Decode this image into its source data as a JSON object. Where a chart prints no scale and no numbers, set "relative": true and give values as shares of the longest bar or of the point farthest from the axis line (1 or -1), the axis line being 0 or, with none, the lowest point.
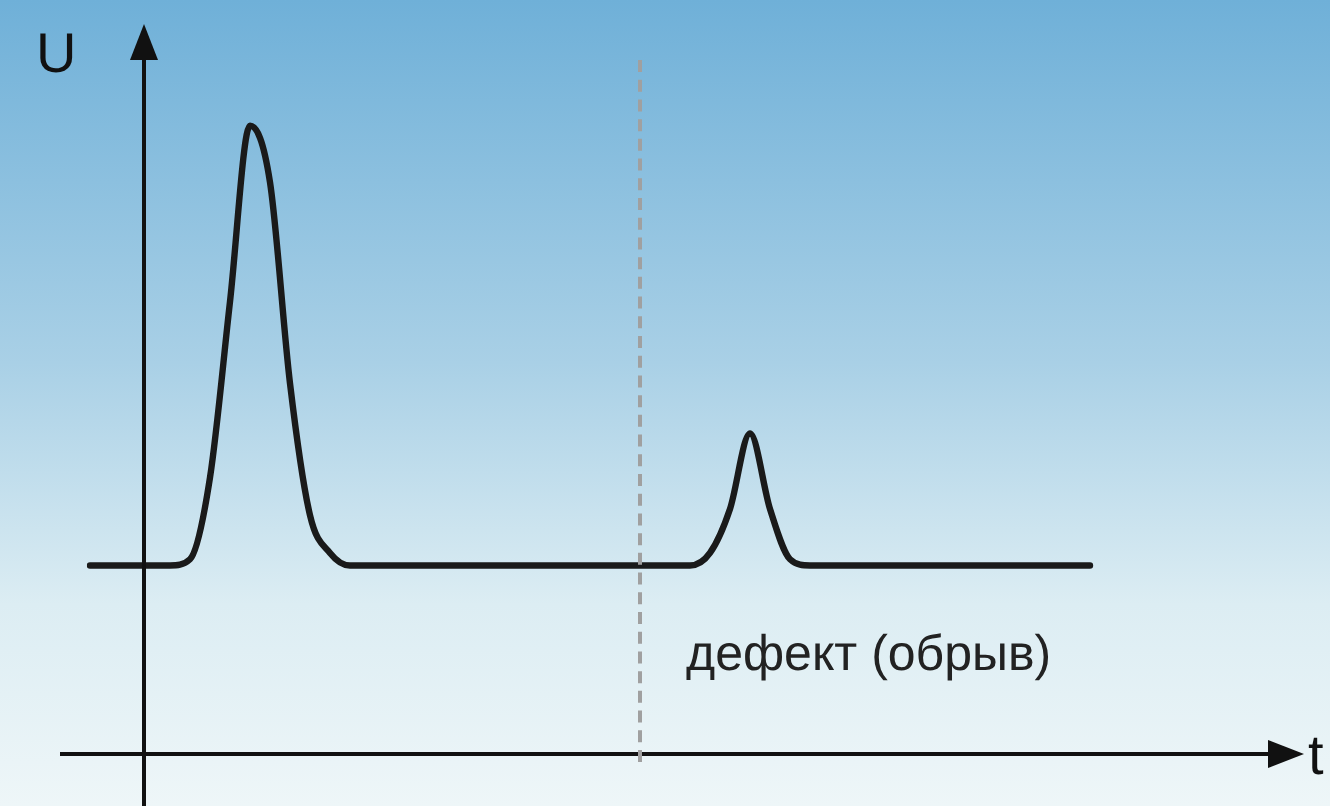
{
  "chart_data": {
    "type": "line",
    "relative": true,
    "xlabel": "t",
    "ylabel": "U",
    "color": "#1a1a1a",
    "marker": "none",
    "line_style": "solid",
    "legend": false,
    "tick_labels": false,
    "categories": [
      null,
      null,
      null,
      null,
      null,
      null,
      null,
      null,
      null,
      null,
      null,
      null,
      null,
      null,
      null,
      null,
      null,
      null,
      null,
      null,
      null,
      null,
      null,
      null,
      null,
      null,
      null,
      null,
      null,
      null,
      null,
      null,
      null,
      null,
      null,
      null,
      null,
      null,
      null,
      null,
      null,
      null,
      null,
      null,
      null,
      null,
      null,
      null,
      null,
      null,
      null,
      null,
      null,
      null,
      null,
      null,
      null,
      null,
      null,
      null,
      null
    ],
    "values": [
      0.3,
      0.3,
      0.3,
      0.3,
      0.3,
      0.31,
      0.44,
      0.72,
      1,
      0.91,
      0.59,
      0.38,
      0.32,
      0.3,
      0.3,
      0.3,
      0.3,
      0.3,
      0.3,
      0.3,
      0.3,
      0.3,
      0.3,
      0.3,
      0.3,
      0.3,
      0.3,
      0.3,
      0.3,
      0.3,
      0.3,
      0.32,
      0.39,
      0.51,
      0.39,
      0.31,
      0.3,
      0.3,
      0.3,
      0.3,
      0.3,
      0.3,
      0.3,
      0.3,
      0.3,
      0.3,
      0.3,
      0.3,
      0.3,
      0.3,
      0.3,
      null,
      null,
      null,
      null,
      null,
      null,
      null,
      null,
      null,
      null
    ],
    "annotations": [
      "дефект (обрыв)"
    ]
  }
}
